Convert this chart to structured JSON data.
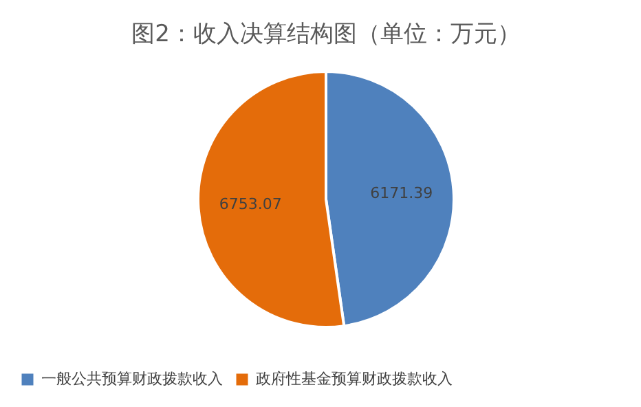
{
  "chart_data": {
    "type": "pie",
    "title": "图2：收入决算结构图（单位：万元）",
    "categories": [
      "一般公共预算财政拨款收入",
      "政府性基金预算财政拨款收入"
    ],
    "values": [
      6171.39,
      6753.07
    ],
    "colors": [
      "#4f81bd",
      "#e46c0a"
    ],
    "data_labels": true,
    "legend": "bottom"
  }
}
